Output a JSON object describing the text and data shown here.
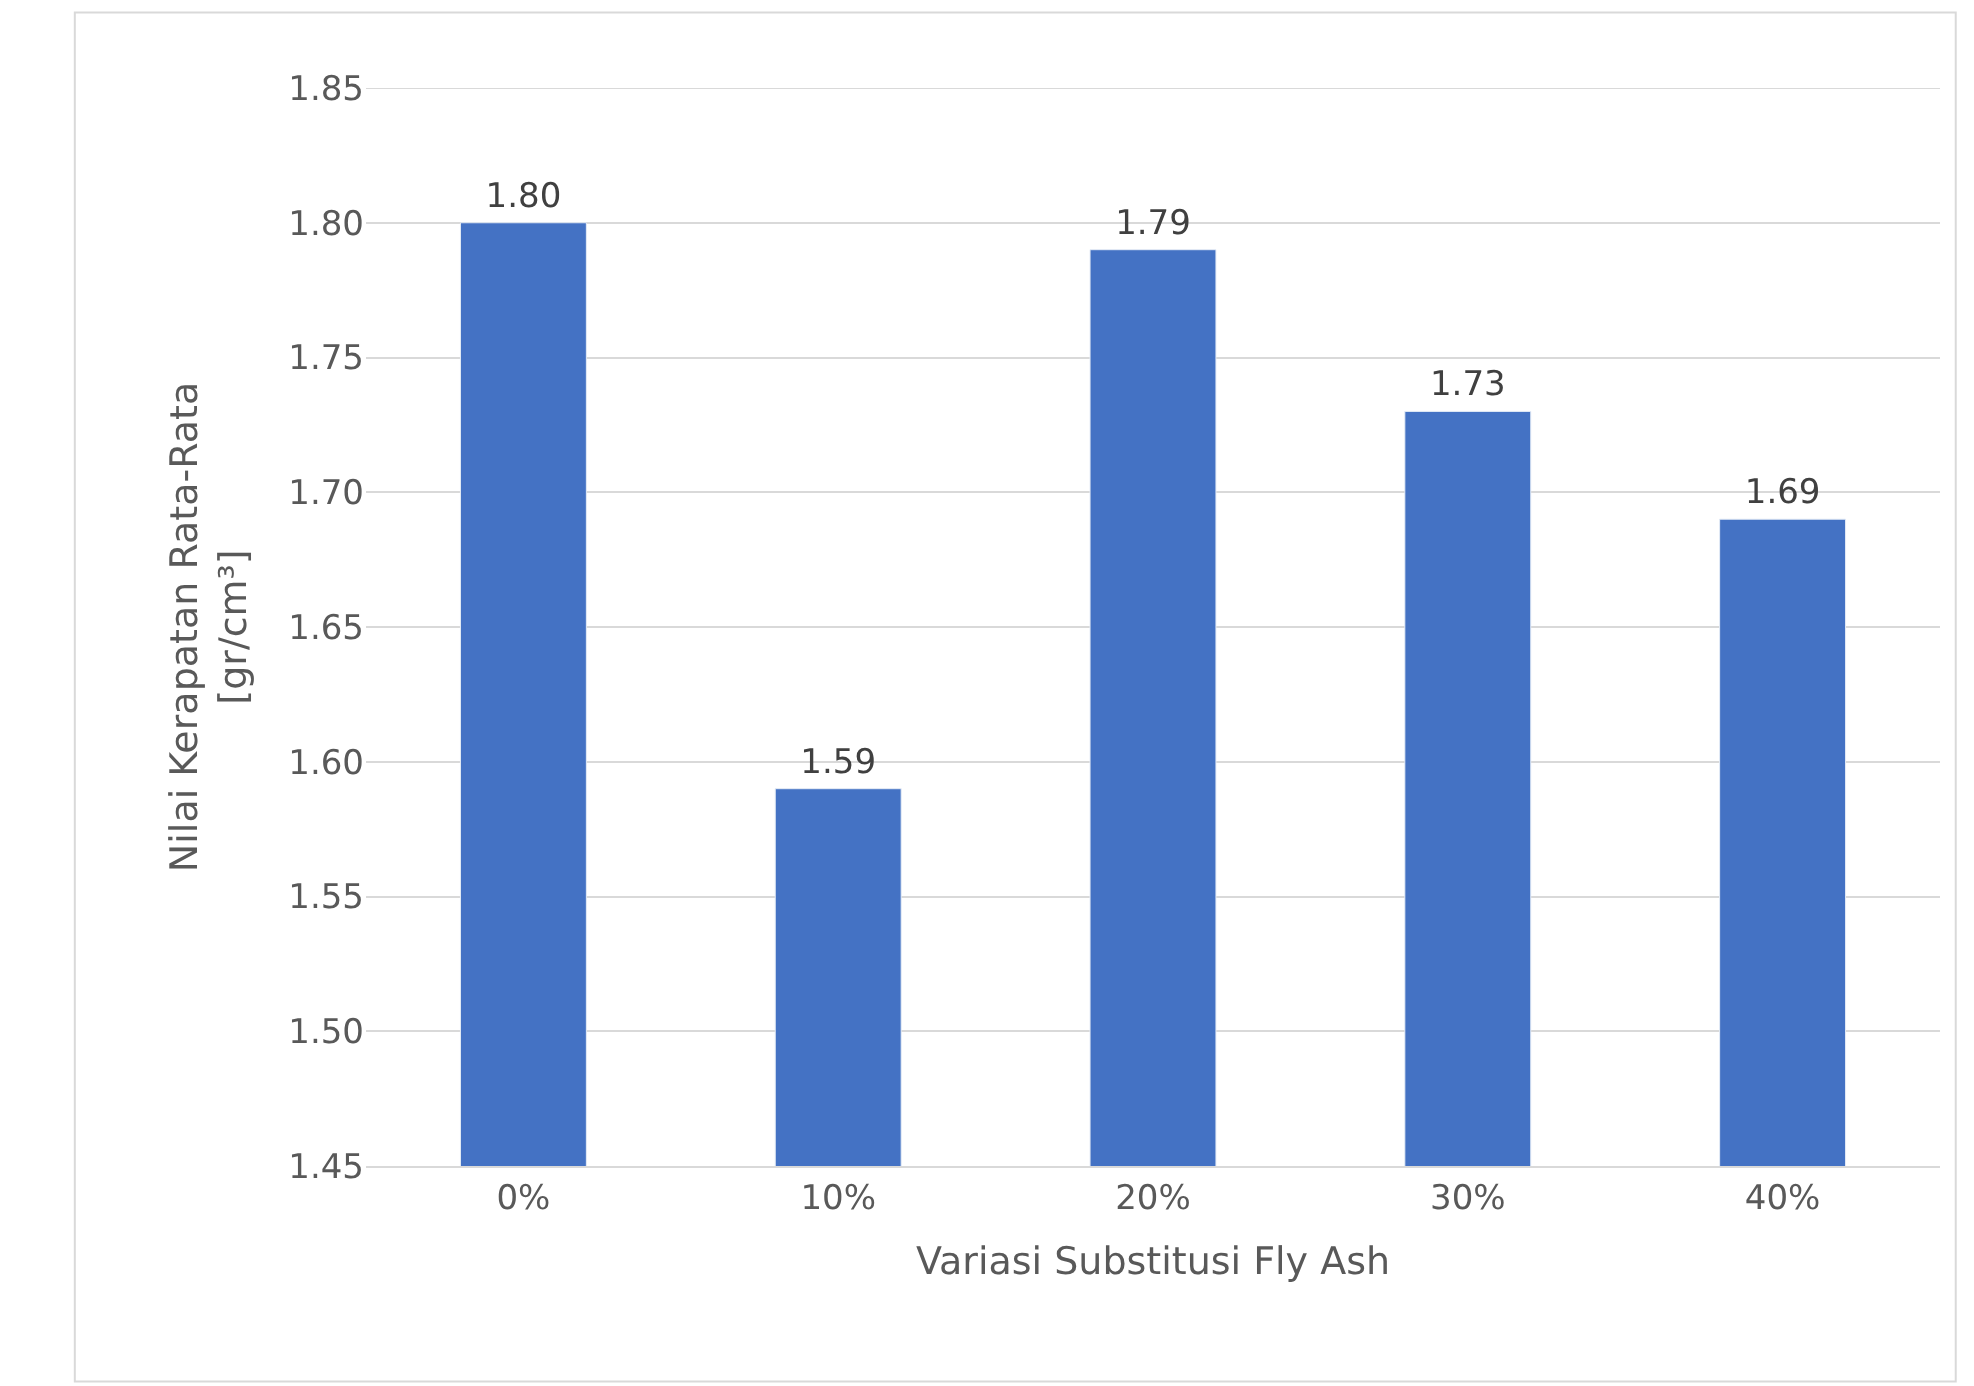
{
  "chart_data": {
    "type": "bar",
    "xlabel": "Variasi Substitusi Fly Ash",
    "ylabel": "Nilai Kerapatan Rata-Rata [gr/cm³]",
    "categories": [
      "0%",
      "10%",
      "20%",
      "30%",
      "40%"
    ],
    "values": [
      1.8,
      1.59,
      1.79,
      1.73,
      1.69
    ],
    "value_labels": [
      "1.80",
      "1.59",
      "1.79",
      "1.73",
      "1.69"
    ],
    "color": "#4472c4",
    "ylim": [
      1.45,
      1.85
    ],
    "yticks": [
      "1.45",
      "1.50",
      "1.55",
      "1.60",
      "1.65",
      "1.70",
      "1.75",
      "1.80",
      "1.85"
    ],
    "grid": "y",
    "legend": false
  }
}
